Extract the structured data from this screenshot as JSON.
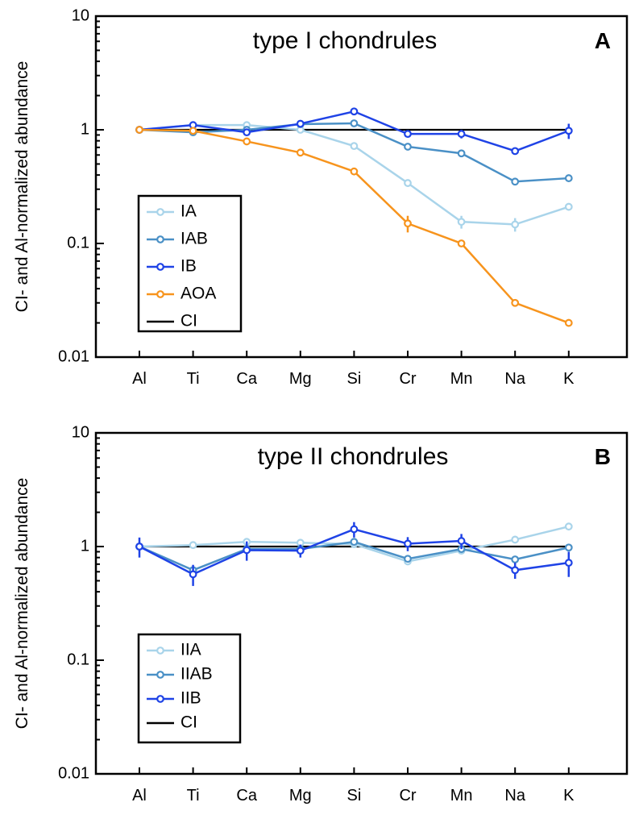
{
  "chart_data": [
    {
      "type": "line",
      "panel_letter": "A",
      "title": "type I chondrules",
      "ylabel": "CI- and Al-normalized abundance",
      "yscale": "log",
      "ylim": [
        0.01,
        10
      ],
      "yticks": [
        "0.01",
        "0.1",
        "1",
        "10"
      ],
      "categories": [
        "Al",
        "Ti",
        "Ca",
        "Mg",
        "Si",
        "Cr",
        "Mn",
        "Na",
        "K"
      ],
      "legend_position": "lower-left",
      "reference": {
        "name": "CI",
        "value": 1,
        "color": "#000000"
      },
      "series": [
        {
          "name": "IA",
          "color": "#a9d4ea",
          "values": [
            1.0,
            1.1,
            1.1,
            1.0,
            0.72,
            0.34,
            0.155,
            0.147,
            0.21
          ],
          "errors": [
            0,
            0,
            0,
            0,
            0,
            0,
            0.02,
            0.02,
            0
          ]
        },
        {
          "name": "IAB",
          "color": "#4a90c6",
          "values": [
            1.0,
            0.95,
            1.0,
            1.12,
            1.14,
            0.71,
            0.62,
            0.35,
            0.375
          ],
          "errors": [
            0,
            0.05,
            0,
            0,
            0,
            0,
            0,
            0,
            0
          ]
        },
        {
          "name": "IB",
          "color": "#1f43e6",
          "values": [
            1.0,
            1.1,
            0.95,
            1.13,
            1.45,
            0.92,
            0.92,
            0.65,
            0.98
          ],
          "errors": [
            0,
            0,
            0,
            0,
            0,
            0,
            0.08,
            0,
            0.15
          ]
        },
        {
          "name": "AOA",
          "color": "#f7941d",
          "values": [
            1.0,
            0.98,
            0.79,
            0.63,
            0.43,
            0.15,
            0.1,
            0.03,
            0.02
          ],
          "errors": [
            0,
            0,
            0,
            0,
            0,
            0.025,
            0,
            0,
            0
          ]
        }
      ]
    },
    {
      "type": "line",
      "panel_letter": "B",
      "title": "type II chondrules",
      "ylabel": "CI- and Al-normalized abundance",
      "yscale": "log",
      "ylim": [
        0.01,
        10
      ],
      "yticks": [
        "0.01",
        "0.1",
        "1",
        "10"
      ],
      "categories": [
        "Al",
        "Ti",
        "Ca",
        "Mg",
        "Si",
        "Cr",
        "Mn",
        "Na",
        "K"
      ],
      "legend_position": "lower-left",
      "reference": {
        "name": "CI",
        "value": 1,
        "color": "#000000"
      },
      "series": [
        {
          "name": "IIA",
          "color": "#a9d4ea",
          "values": [
            1.0,
            1.03,
            1.1,
            1.08,
            1.05,
            0.74,
            0.92,
            1.15,
            1.5
          ],
          "errors": [
            0,
            0,
            0,
            0,
            0,
            0,
            0,
            0,
            0
          ]
        },
        {
          "name": "IIAB",
          "color": "#4a90c6",
          "values": [
            1.0,
            0.62,
            0.95,
            0.95,
            1.1,
            0.78,
            0.95,
            0.77,
            0.98
          ],
          "errors": [
            0,
            0,
            0,
            0,
            0,
            0,
            0,
            0,
            0
          ]
        },
        {
          "name": "IIB",
          "color": "#1f43e6",
          "values": [
            1.0,
            0.57,
            0.93,
            0.92,
            1.42,
            1.06,
            1.12,
            0.62,
            0.72
          ],
          "errors": [
            0.2,
            0.12,
            0.18,
            0.12,
            0.22,
            0.15,
            0.17,
            0.1,
            0.18
          ]
        }
      ]
    }
  ]
}
